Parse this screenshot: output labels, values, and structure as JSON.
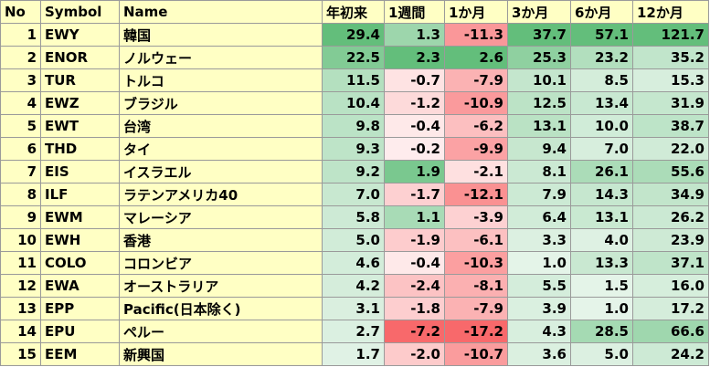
{
  "table": {
    "header": [
      "No",
      "Symbol",
      "Name",
      "年初来",
      "1週間",
      "1か月",
      "3か月",
      "6か月",
      "12か月"
    ],
    "rows": [
      [
        "1",
        "EWY",
        "韓国",
        "29.4",
        "1.3",
        "-11.3",
        "37.7",
        "57.1",
        "121.7"
      ],
      [
        "2",
        "ENOR",
        "ノルウェー",
        "22.5",
        "2.3",
        "2.6",
        "25.3",
        "23.2",
        "35.2"
      ],
      [
        "3",
        "TUR",
        "トルコ",
        "11.5",
        "-0.7",
        "-7.9",
        "10.1",
        "8.5",
        "15.3"
      ],
      [
        "4",
        "EWZ",
        "ブラジル",
        "10.4",
        "-1.2",
        "-10.9",
        "12.5",
        "13.4",
        "31.9"
      ],
      [
        "5",
        "EWT",
        "台湾",
        "9.8",
        "-0.4",
        "-6.2",
        "13.1",
        "10.0",
        "38.7"
      ],
      [
        "6",
        "THD",
        "タイ",
        "9.3",
        "-0.2",
        "-9.9",
        "9.4",
        "7.0",
        "22.0"
      ],
      [
        "7",
        "EIS",
        "イスラエル",
        "9.2",
        "1.9",
        "-2.1",
        "8.1",
        "26.1",
        "55.6"
      ],
      [
        "8",
        "ILF",
        "ラテンアメリカ40",
        "7.0",
        "-1.7",
        "-12.1",
        "7.9",
        "14.3",
        "34.9"
      ],
      [
        "9",
        "EWM",
        "マレーシア",
        "5.8",
        "1.1",
        "-3.9",
        "6.4",
        "13.1",
        "26.2"
      ],
      [
        "10",
        "EWH",
        "香港",
        "5.0",
        "-1.9",
        "-6.1",
        "3.3",
        "4.0",
        "23.9"
      ],
      [
        "11",
        "COLO",
        "コロンビア",
        "4.6",
        "-0.4",
        "-10.3",
        "1.0",
        "13.3",
        "37.1"
      ],
      [
        "12",
        "EWA",
        "オーストラリア",
        "4.2",
        "-2.4",
        "-8.1",
        "5.5",
        "1.5",
        "16.0"
      ],
      [
        "13",
        "EPP",
        "Pacific(日本除く)",
        "3.1",
        "-1.8",
        "-7.9",
        "3.9",
        "1.0",
        "17.2"
      ],
      [
        "14",
        "EPU",
        "ペルー",
        "2.7",
        "-7.2",
        "-17.2",
        "4.3",
        "28.5",
        "66.6"
      ],
      [
        "15",
        "EEM",
        "新興国",
        "1.7",
        "-2.0",
        "-10.7",
        "3.6",
        "5.0",
        "24.2"
      ]
    ]
  }
}
